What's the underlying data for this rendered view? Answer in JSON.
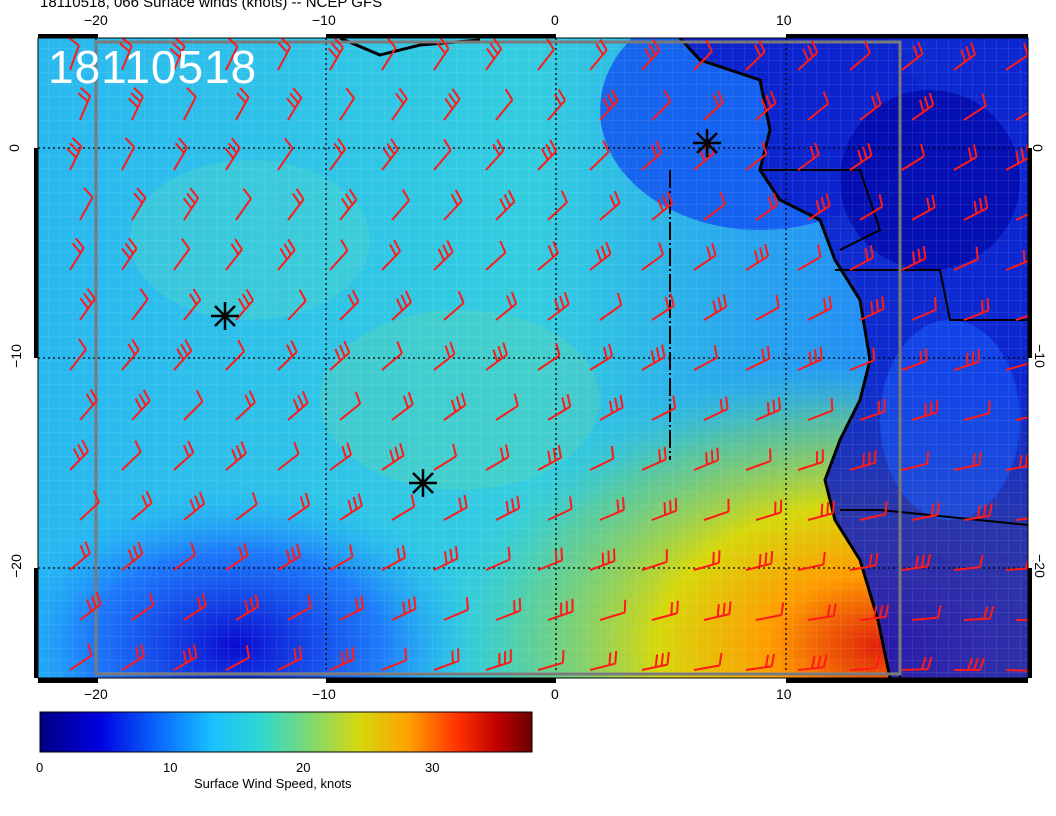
{
  "title": "18110518, 066 Surface winds (knots) -- NCEP GFS",
  "stamp": "18110518",
  "lon_ticks": [
    "−20",
    "−10",
    "0",
    "10"
  ],
  "lat_ticks": [
    "0",
    "−10",
    "−20"
  ],
  "colorbar": {
    "label": "Surface Wind Speed, knots",
    "ticks": [
      "0",
      "10",
      "20",
      "30"
    ],
    "colors": [
      "#00007f",
      "#0000d8",
      "#1060ff",
      "#19b7ff",
      "#2fd6d6",
      "#4fd8a0",
      "#9ad040",
      "#d6d80c",
      "#ffb000",
      "#ff6000",
      "#e01000",
      "#7f0000"
    ]
  },
  "markers": [
    "storm-center-icon",
    "storm-center-icon",
    "storm-center-icon"
  ],
  "colors": {
    "barb": "#ff1a1a",
    "coast": "#000000",
    "grid": "#000000",
    "frame": "#7a7a7a"
  }
}
